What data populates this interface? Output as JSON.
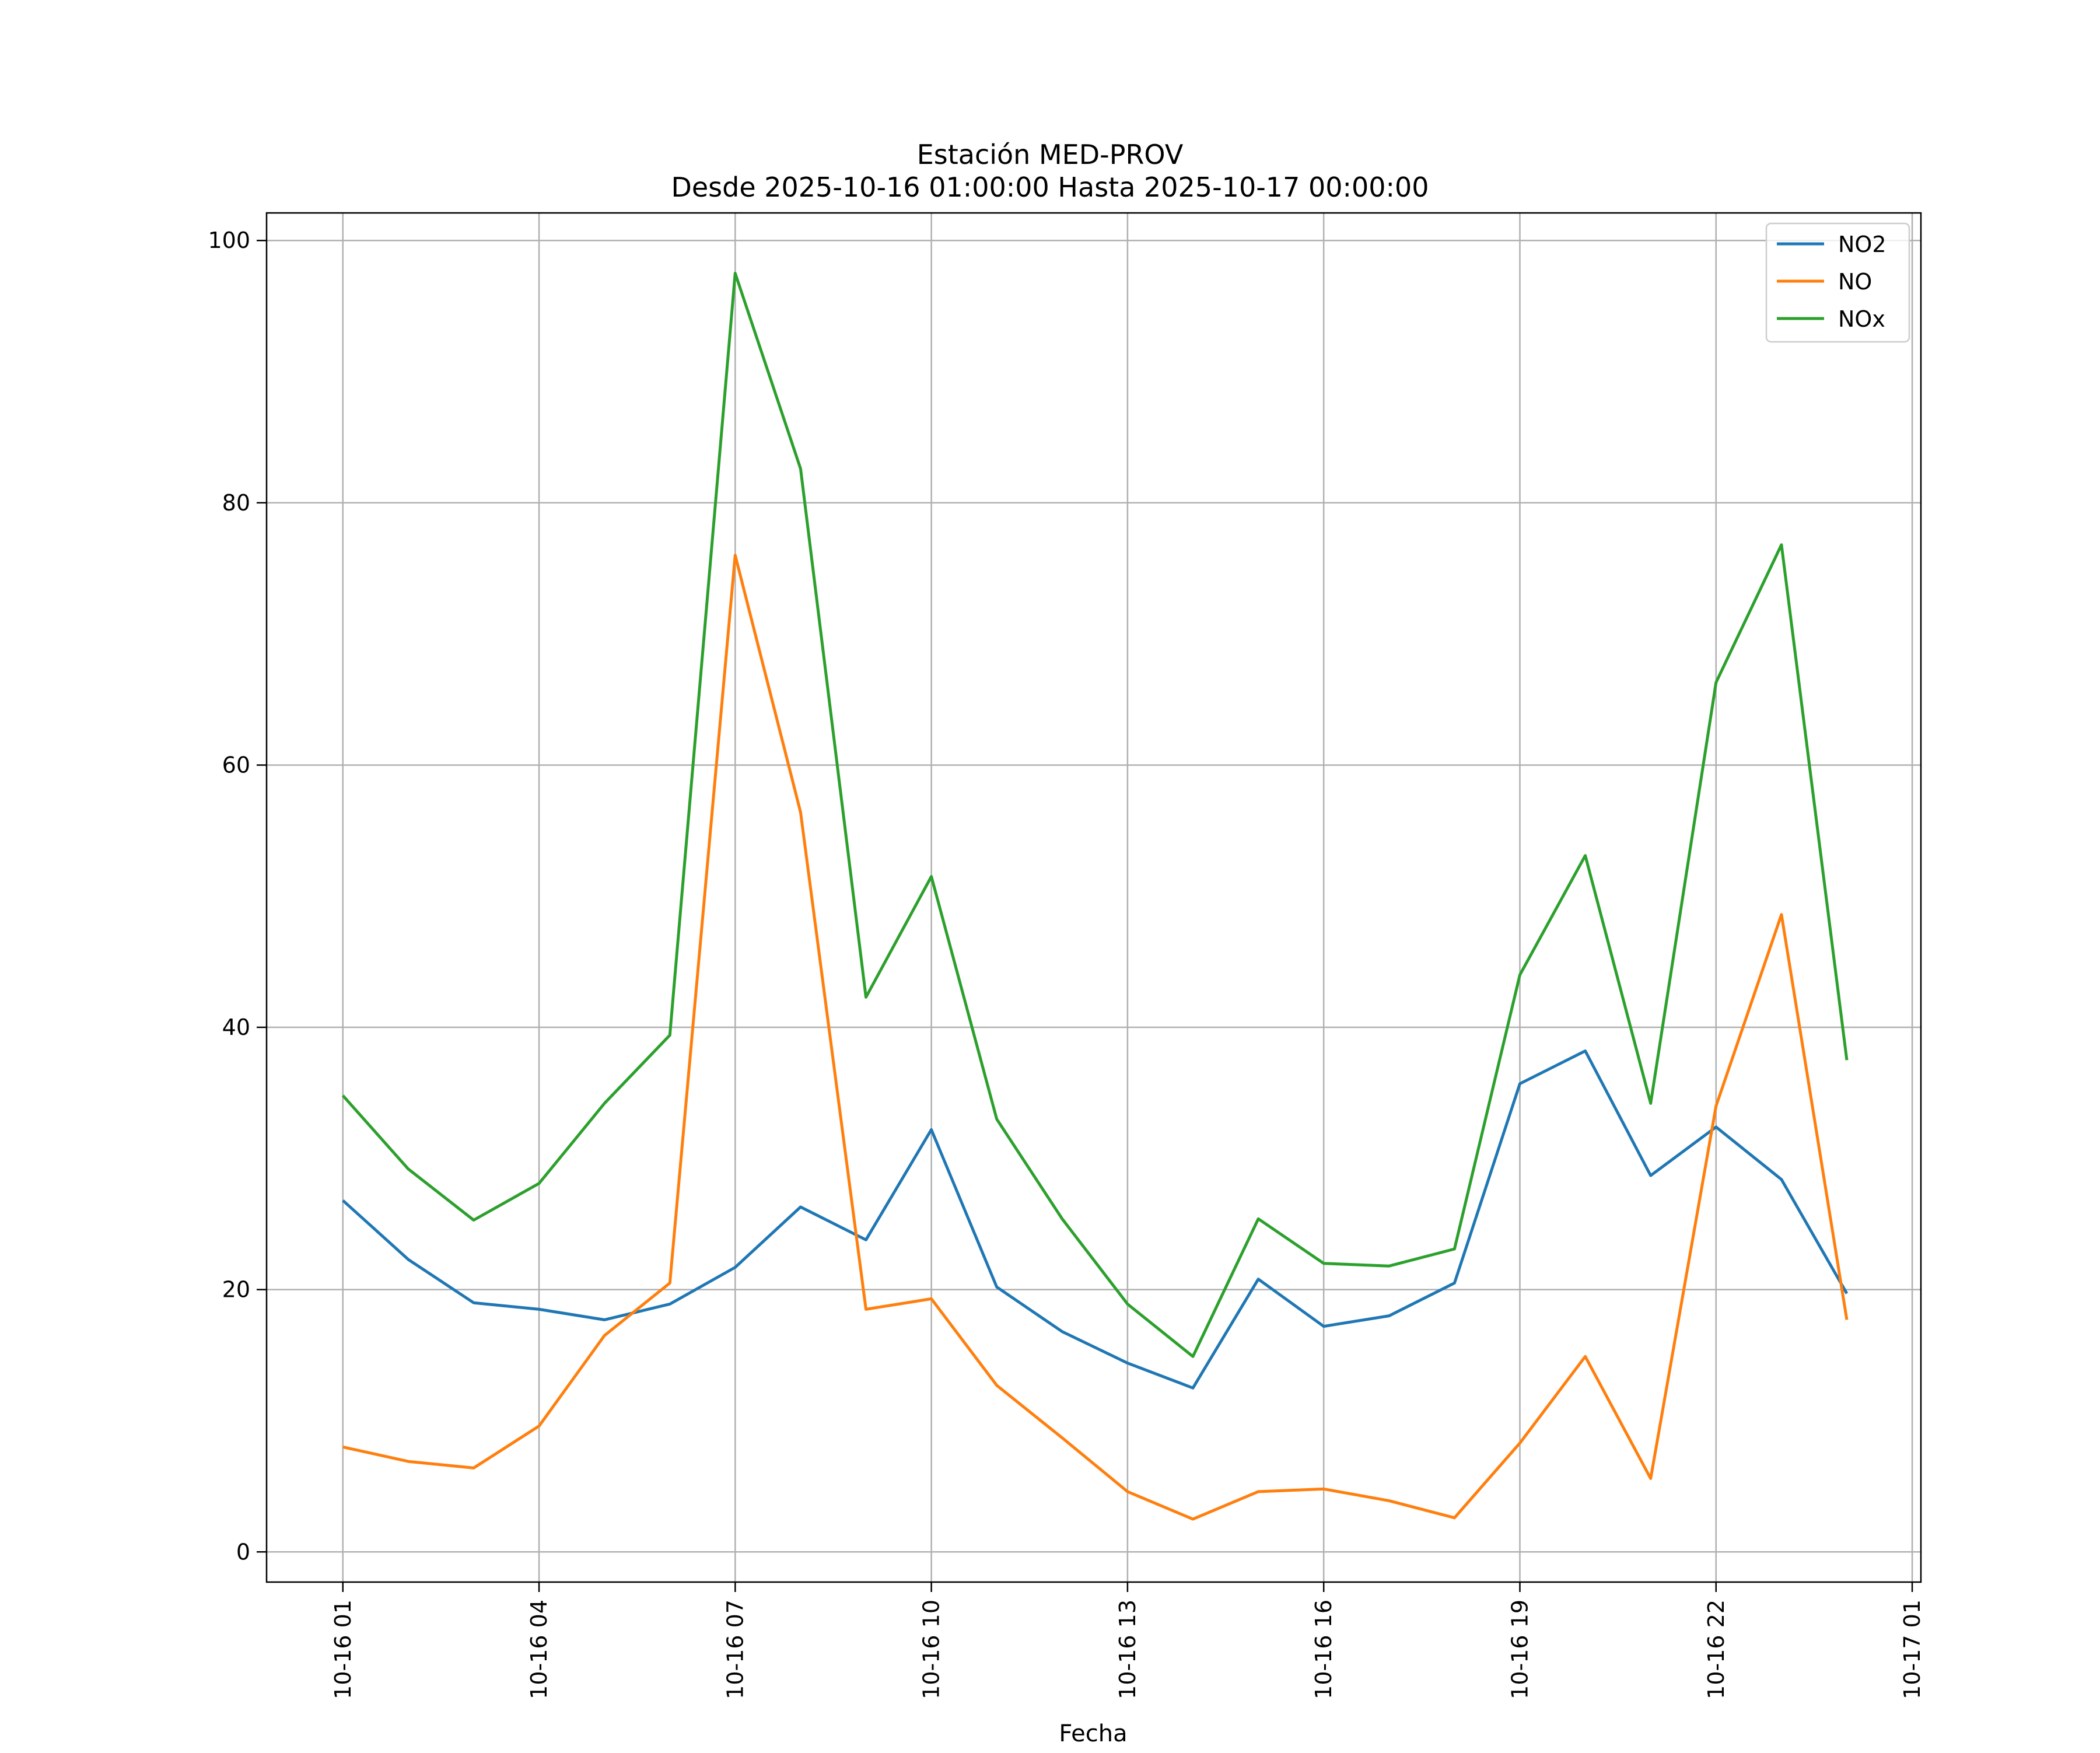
{
  "chart_data": {
    "type": "line",
    "title": "Estación MED-PROV",
    "subtitle": "Desde 2025-10-16 01:00:00 Hasta 2025-10-17 00:00:00",
    "xlabel": "Fecha",
    "ylabel": "",
    "x": [
      "2025-10-16 01:00",
      "2025-10-16 02:00",
      "2025-10-16 03:00",
      "2025-10-16 04:00",
      "2025-10-16 05:00",
      "2025-10-16 06:00",
      "2025-10-16 07:00",
      "2025-10-16 08:00",
      "2025-10-16 09:00",
      "2025-10-16 10:00",
      "2025-10-16 11:00",
      "2025-10-16 12:00",
      "2025-10-16 13:00",
      "2025-10-16 14:00",
      "2025-10-16 15:00",
      "2025-10-16 16:00",
      "2025-10-16 17:00",
      "2025-10-16 18:00",
      "2025-10-16 19:00",
      "2025-10-16 20:00",
      "2025-10-16 21:00",
      "2025-10-16 22:00",
      "2025-10-16 23:00",
      "2025-10-17 00:00"
    ],
    "xticks": [
      {
        "at": "2025-10-16 01:00",
        "label": "10-16 01"
      },
      {
        "at": "2025-10-16 04:00",
        "label": "10-16 04"
      },
      {
        "at": "2025-10-16 07:00",
        "label": "10-16 07"
      },
      {
        "at": "2025-10-16 10:00",
        "label": "10-16 10"
      },
      {
        "at": "2025-10-16 13:00",
        "label": "10-16 13"
      },
      {
        "at": "2025-10-16 16:00",
        "label": "10-16 16"
      },
      {
        "at": "2025-10-16 19:00",
        "label": "10-16 19"
      },
      {
        "at": "2025-10-16 22:00",
        "label": "10-16 22"
      },
      {
        "at": "2025-10-17 01:00",
        "label": "10-17 01"
      }
    ],
    "xlim": [
      "2025-10-15 23:50",
      "2025-10-17 01:08"
    ],
    "yticks": [
      0,
      20,
      40,
      60,
      80,
      100
    ],
    "ylim": [
      -2.3,
      102.1
    ],
    "grid": true,
    "legend": "top-right",
    "series": [
      {
        "name": "NO2",
        "color": "#1f77b4",
        "values": [
          26.8,
          22.3,
          19.0,
          18.5,
          17.7,
          18.9,
          21.7,
          26.3,
          23.8,
          32.2,
          20.2,
          16.8,
          14.4,
          12.5,
          20.8,
          17.2,
          18.0,
          20.5,
          35.7,
          38.2,
          28.7,
          32.4,
          28.4,
          19.7
        ]
      },
      {
        "name": "NO",
        "color": "#ff7f0e",
        "values": [
          8.0,
          6.9,
          6.4,
          9.6,
          16.5,
          20.5,
          76.0,
          56.4,
          18.5,
          19.3,
          12.7,
          8.7,
          4.6,
          2.5,
          4.6,
          4.8,
          3.9,
          2.6,
          8.3,
          14.9,
          5.6,
          34.0,
          48.6,
          17.7
        ]
      },
      {
        "name": "NOx",
        "color": "#2ca02c",
        "values": [
          34.8,
          29.2,
          25.3,
          28.1,
          34.2,
          39.4,
          97.5,
          82.6,
          42.3,
          51.5,
          33.0,
          25.4,
          18.9,
          14.9,
          25.4,
          22.0,
          21.8,
          23.1,
          44.0,
          53.1,
          34.2,
          66.3,
          76.8,
          37.5
        ]
      }
    ]
  }
}
